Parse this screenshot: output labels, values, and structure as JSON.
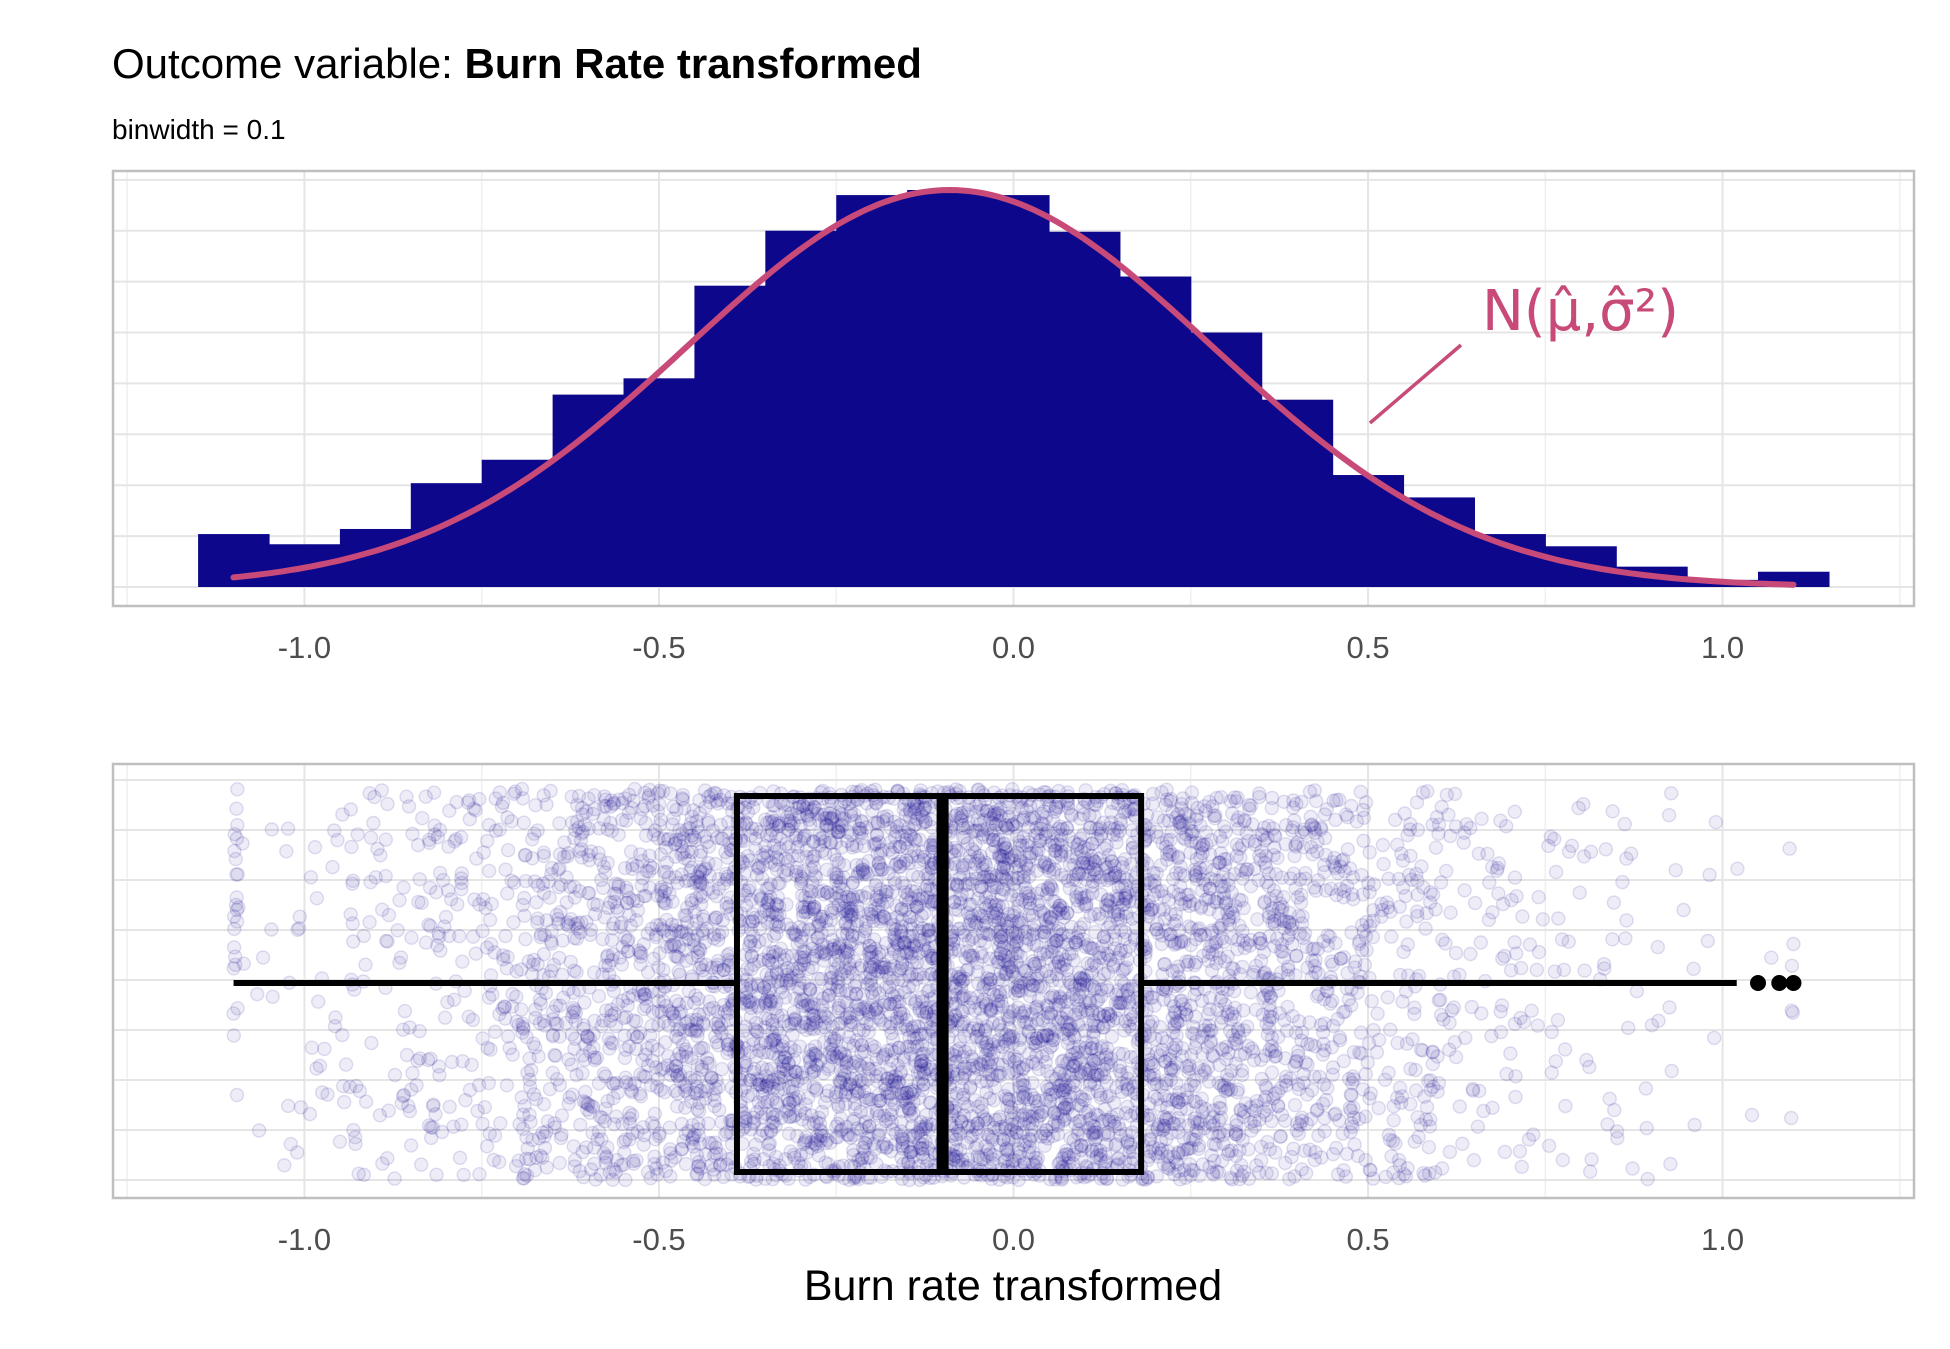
{
  "title": {
    "prefix": "Outcome variable: ",
    "bold": "Burn Rate transformed"
  },
  "subtitle": "binwidth = 0.1",
  "colors": {
    "bar": "#0d078b",
    "curve": "#c74a79",
    "points": "#0d078b",
    "box": "#000000",
    "grid": "#e5e5e5",
    "panel_border": "#bfbfbf"
  },
  "chart_data": [
    {
      "type": "bar",
      "subtype": "histogram",
      "binwidth": 0.1,
      "bin_starts": [
        -1.15,
        -1.05,
        -0.95,
        -0.85,
        -0.75,
        -0.65,
        -0.55,
        -0.45,
        -0.35,
        -0.25,
        -0.15,
        -0.05,
        0.05,
        0.15,
        0.25,
        0.35,
        0.45,
        0.55,
        0.65,
        0.75,
        0.85,
        0.95,
        1.05
      ],
      "values": [
        52,
        42,
        57,
        102,
        125,
        189,
        205,
        296,
        350,
        385,
        390,
        385,
        349,
        305,
        250,
        184,
        110,
        88,
        52,
        40,
        20,
        7,
        15
      ],
      "normal_curve": {
        "label": "N(μ̂,σ̂²)",
        "mean": -0.09,
        "sd": 0.37,
        "peak": 390
      },
      "xlim": [
        -1.27,
        1.27
      ],
      "x_ticks": [
        "-1.0",
        "-0.5",
        "0.0",
        "0.5",
        "1.0"
      ],
      "y_ticks_shown": false,
      "grid": true
    },
    {
      "type": "scatter",
      "subtype": "boxplot with jittered points",
      "box": {
        "lower_whisker": -1.1,
        "q1": -0.39,
        "median": -0.1,
        "q3": 0.18,
        "upper_whisker": 1.02,
        "outliers": [
          1.05,
          1.08,
          1.1
        ]
      },
      "points_range": [
        -1.1,
        1.1
      ],
      "xlim": [
        -1.27,
        1.27
      ],
      "x_ticks": [
        "-1.0",
        "-0.5",
        "0.0",
        "0.5",
        "1.0"
      ],
      "xlabel": "Burn rate transformed",
      "grid": true
    }
  ]
}
